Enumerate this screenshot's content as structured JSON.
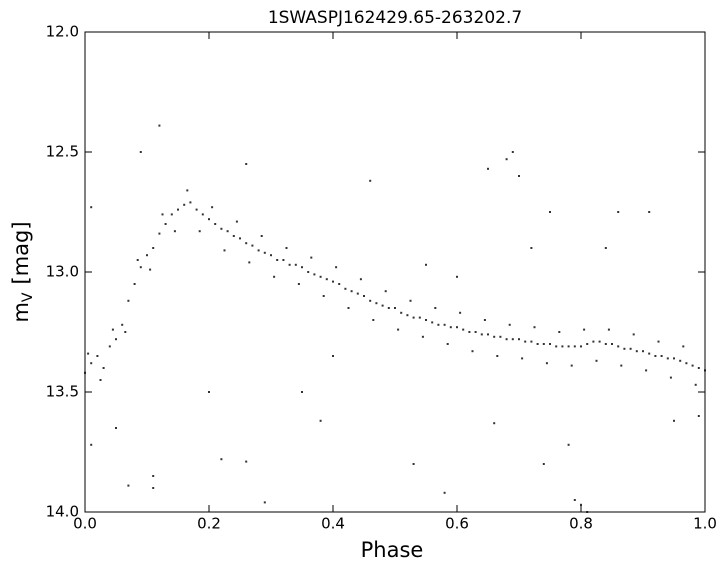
{
  "chart_data": {
    "type": "scatter",
    "title": "1SWASPJ162429.65-263202.7",
    "xlabel": "Phase",
    "ylabel": [
      "m",
      "V",
      "[mag]"
    ],
    "xlim": [
      0,
      1
    ],
    "ylim": [
      14,
      12
    ],
    "xticks": [
      {
        "value": 0,
        "label": "0.0"
      },
      0.2,
      0.4,
      0.6,
      0.8,
      {
        "value": 1,
        "label": "1.0"
      }
    ],
    "yticks": [
      {
        "value": 12,
        "label": "12.0"
      },
      12.5,
      {
        "value": 13,
        "label": "13.0"
      },
      13.5,
      {
        "value": 14,
        "label": "14.0"
      }
    ],
    "grid": false,
    "series": [
      {
        "color": "#333333",
        "x": [
          0.0,
          0.01,
          0.02,
          0.03,
          0.04,
          0.05,
          0.06,
          0.07,
          0.08,
          0.09,
          0.1,
          0.11,
          0.12,
          0.13,
          0.14,
          0.15,
          0.16,
          0.17,
          0.18,
          0.19,
          0.2,
          0.21,
          0.22,
          0.23,
          0.24,
          0.25,
          0.26,
          0.27,
          0.28,
          0.29,
          0.3,
          0.31,
          0.32,
          0.33,
          0.34,
          0.35,
          0.36,
          0.37,
          0.38,
          0.39,
          0.4,
          0.41,
          0.42,
          0.43,
          0.44,
          0.45,
          0.46,
          0.47,
          0.48,
          0.49,
          0.5,
          0.51,
          0.52,
          0.53,
          0.54,
          0.55,
          0.56,
          0.57,
          0.58,
          0.59,
          0.6,
          0.61,
          0.62,
          0.63,
          0.64,
          0.65,
          0.66,
          0.67,
          0.68,
          0.69,
          0.7,
          0.71,
          0.72,
          0.73,
          0.74,
          0.75,
          0.76,
          0.77,
          0.78,
          0.79,
          0.8,
          0.81,
          0.82,
          0.83,
          0.84,
          0.85,
          0.86,
          0.87,
          0.88,
          0.89,
          0.9,
          0.91,
          0.92,
          0.93,
          0.94,
          0.95,
          0.96,
          0.97,
          0.98,
          0.99,
          1.0,
          0.005,
          0.045,
          0.085,
          0.125,
          0.165,
          0.205,
          0.245,
          0.285,
          0.325,
          0.365,
          0.405,
          0.445,
          0.485,
          0.525,
          0.565,
          0.605,
          0.645,
          0.685,
          0.725,
          0.765,
          0.805,
          0.845,
          0.885,
          0.925,
          0.965,
          0.025,
          0.065,
          0.105,
          0.145,
          0.185,
          0.225,
          0.265,
          0.305,
          0.345,
          0.385,
          0.425,
          0.465,
          0.505,
          0.545,
          0.585,
          0.625,
          0.665,
          0.705,
          0.745,
          0.785,
          0.825,
          0.865,
          0.905,
          0.945,
          0.985,
          0.12,
          0.09,
          0.26,
          0.46,
          0.68,
          0.69,
          0.65,
          0.7,
          0.75,
          0.86,
          0.91,
          0.01,
          0.07,
          0.11,
          0.11,
          0.22,
          0.29,
          0.26,
          0.38,
          0.58,
          0.66,
          0.74,
          0.79,
          0.8,
          0.81,
          0.78,
          0.01,
          0.05,
          0.2,
          0.53,
          0.4,
          0.35,
          0.95,
          0.99,
          0.55,
          0.6,
          0.72,
          0.84
        ],
        "values": [
          13.42,
          13.38,
          13.35,
          13.4,
          13.31,
          13.28,
          13.22,
          13.12,
          13.05,
          12.98,
          12.93,
          12.9,
          12.84,
          12.8,
          12.76,
          12.74,
          12.72,
          12.71,
          12.74,
          12.76,
          12.78,
          12.8,
          12.82,
          12.83,
          12.85,
          12.86,
          12.88,
          12.89,
          12.91,
          12.92,
          12.93,
          12.95,
          12.95,
          12.97,
          12.97,
          12.98,
          13.0,
          13.01,
          13.02,
          13.03,
          13.04,
          13.05,
          13.07,
          13.08,
          13.09,
          13.1,
          13.12,
          13.13,
          13.14,
          13.15,
          13.15,
          13.17,
          13.18,
          13.19,
          13.19,
          13.2,
          13.21,
          13.22,
          13.22,
          13.23,
          13.23,
          13.24,
          13.25,
          13.25,
          13.26,
          13.26,
          13.27,
          13.27,
          13.28,
          13.28,
          13.28,
          13.29,
          13.29,
          13.3,
          13.3,
          13.3,
          13.31,
          13.31,
          13.31,
          13.31,
          13.31,
          13.3,
          13.29,
          13.29,
          13.3,
          13.3,
          13.31,
          13.32,
          13.32,
          13.33,
          13.33,
          13.34,
          13.35,
          13.35,
          13.36,
          13.36,
          13.37,
          13.38,
          13.39,
          13.4,
          13.41,
          13.34,
          13.24,
          12.95,
          12.76,
          12.66,
          12.73,
          12.79,
          12.85,
          12.9,
          12.94,
          12.98,
          13.03,
          13.08,
          13.12,
          13.15,
          13.17,
          13.2,
          13.22,
          13.23,
          13.25,
          13.24,
          13.24,
          13.26,
          13.29,
          13.31,
          13.45,
          13.25,
          12.99,
          12.83,
          12.83,
          12.91,
          12.96,
          13.02,
          13.05,
          13.1,
          13.15,
          13.2,
          13.24,
          13.27,
          13.3,
          13.33,
          13.35,
          13.36,
          13.38,
          13.39,
          13.37,
          13.39,
          13.41,
          13.44,
          13.47,
          12.39,
          12.5,
          12.55,
          12.62,
          12.53,
          12.5,
          12.57,
          12.6,
          12.75,
          12.75,
          12.75,
          12.73,
          13.89,
          13.85,
          13.9,
          13.78,
          13.96,
          13.79,
          13.62,
          13.92,
          13.63,
          13.8,
          13.95,
          13.97,
          14.0,
          13.72,
          13.72,
          13.65,
          13.5,
          13.8,
          13.35,
          13.5,
          13.62,
          13.6,
          12.97,
          13.02,
          12.9,
          12.9
        ]
      }
    ]
  }
}
